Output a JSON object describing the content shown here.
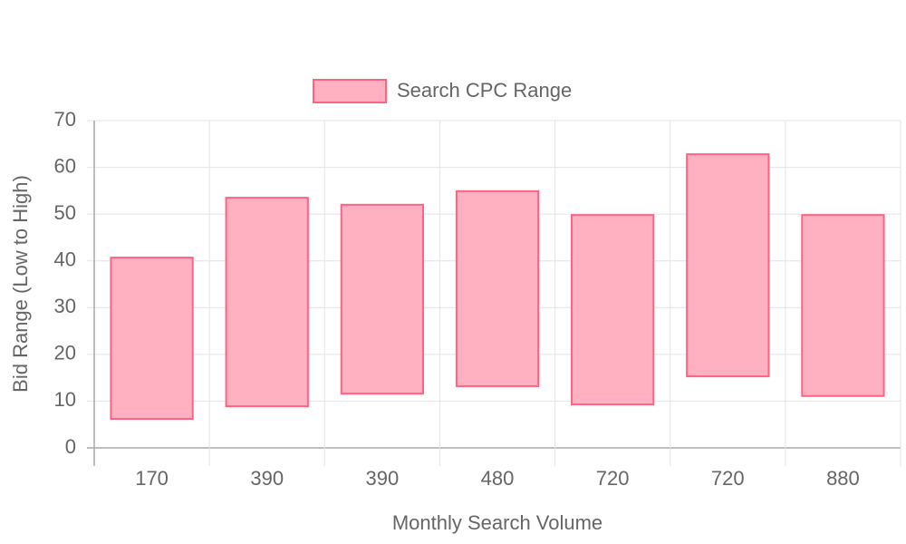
{
  "chart_data": {
    "type": "floating-bar",
    "x_label": "Monthly Search Volume",
    "y_label": "Bid Range (Low to High)",
    "categories": [
      "170",
      "390",
      "390",
      "480",
      "720",
      "720",
      "880"
    ],
    "series": [
      {
        "name": "Search CPC Range",
        "color": "#ffb1c1",
        "border_color": "#ff6384",
        "low": [
          6.2,
          8.9,
          11.6,
          13.2,
          9.3,
          15.3,
          11.1
        ],
        "high": [
          40.7,
          53.5,
          52.0,
          54.9,
          49.8,
          62.8,
          49.8
        ]
      }
    ],
    "ylim": [
      0,
      70
    ],
    "yticks": [
      0,
      10,
      20,
      30,
      40,
      50,
      60,
      70
    ],
    "grid": true,
    "legend": "top"
  }
}
